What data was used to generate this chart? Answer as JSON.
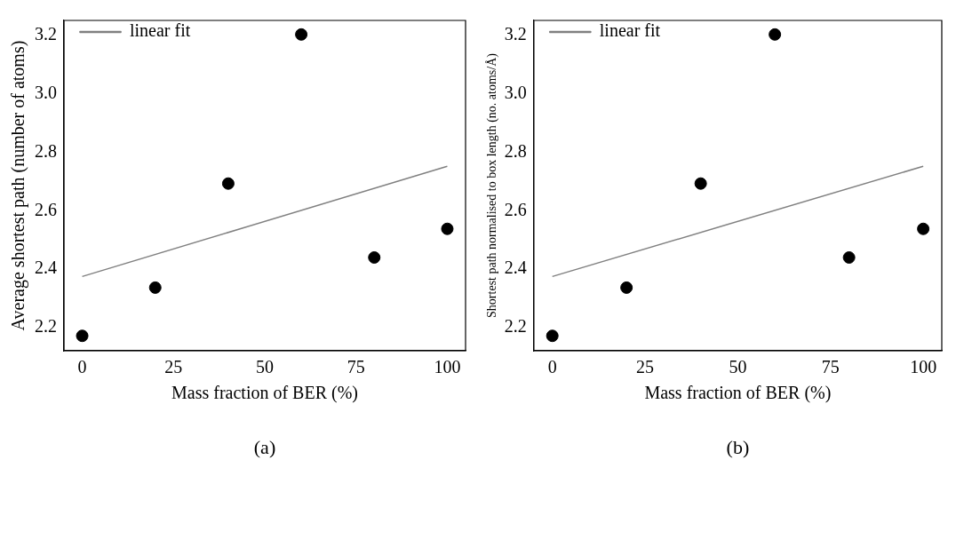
{
  "chart_data": [
    {
      "type": "scatter",
      "xlabel": "Mass fraction of BER (%)",
      "ylabel": "Average shortest path (number of atoms)",
      "xlim": [
        -5,
        105
      ],
      "ylim": [
        2.121,
        3.251
      ],
      "xticks": [
        0,
        25,
        50,
        75,
        100
      ],
      "yticks": [
        2.2,
        2.4,
        2.6,
        2.8,
        {
          "value": 3.0,
          "label": "3.0"
        },
        3.2
      ],
      "grid": false,
      "legend": "top left",
      "annotations": [
        "(a)"
      ],
      "series": [
        {
          "type": "scatter",
          "marker": "circle",
          "color": "#000000",
          "x": [
            0,
            20,
            40,
            60,
            80,
            100
          ],
          "values": [
            2.172,
            2.337,
            2.693,
            3.203,
            2.44,
            2.538
          ]
        },
        {
          "type": "line",
          "name": "linear fit",
          "color": "#808080",
          "x": [
            0,
            100
          ],
          "values": [
            2.375,
            2.752
          ]
        }
      ]
    },
    {
      "type": "scatter",
      "xlabel": "Mass fraction of BER (%)",
      "ylabel": "Shortest path normalised to box length (no. atoms/Å)",
      "xlim": [
        -5,
        105
      ],
      "ylim": [
        2.121,
        3.251
      ],
      "xticks": [
        0,
        25,
        50,
        75,
        100
      ],
      "yticks": [
        2.2,
        2.4,
        2.6,
        2.8,
        {
          "value": 3.0,
          "label": "3.0"
        },
        3.2
      ],
      "grid": false,
      "legend": "top left",
      "annotations": [
        "(b)"
      ],
      "series": [
        {
          "type": "scatter",
          "marker": "circle",
          "color": "#000000",
          "x": [
            0,
            20,
            40,
            60,
            80,
            100
          ],
          "values": [
            2.172,
            2.337,
            2.693,
            3.203,
            2.44,
            2.538
          ]
        },
        {
          "type": "line",
          "name": "linear fit",
          "color": "#808080",
          "x": [
            0,
            100
          ],
          "values": [
            2.375,
            2.752
          ]
        }
      ]
    }
  ]
}
